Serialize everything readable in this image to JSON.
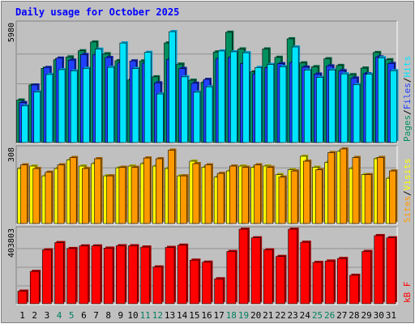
{
  "colors": {
    "background": "#c0c0c0",
    "plot_bg": "#ffffff",
    "border_dark": "#808080",
    "title": "#0000ff",
    "hits_front": "#00e5ff",
    "hits_back": "#0096c8",
    "files_front": "#2040ff",
    "files_back": "#1020a0",
    "pages_front": "#009060",
    "pages_back": "#00603c",
    "visits_front": "#ffff00",
    "visits_back": "#a0a000",
    "sites_front": "#ff9900",
    "sites_back": "#a06000",
    "kbytes_front": "#ff0000",
    "kbytes_back": "#a00000",
    "weekend_label": "#008060",
    "weekday_label": "#000000"
  },
  "chart_data": {
    "type": "bar",
    "title": "Daily usage for October 2025",
    "categories": [
      "1",
      "2",
      "3",
      "4",
      "5",
      "6",
      "7",
      "8",
      "9",
      "10",
      "11",
      "12",
      "13",
      "14",
      "15",
      "16",
      "17",
      "18",
      "19",
      "20",
      "21",
      "22",
      "23",
      "24",
      "25",
      "26",
      "27",
      "28",
      "29",
      "30",
      "31"
    ],
    "weekend_days": [
      "4",
      "5",
      "11",
      "12",
      "18",
      "19",
      "25",
      "26"
    ],
    "panels": [
      {
        "name": "hits-files-pages",
        "max_label": "5980",
        "ylim": [
          0,
          5980
        ],
        "legend": [
          {
            "text": "Pages",
            "color_key": "pages_front"
          },
          {
            "text": "Files",
            "color_key": "files_front"
          },
          {
            "text": "Hits",
            "color_key": "hits_front"
          }
        ],
        "series": [
          {
            "name": "Pages",
            "color_key": "pages",
            "values": [
              2135,
              2890,
              3730,
              4160,
              4300,
              4610,
              5050,
              4460,
              4110,
              3140,
              4100,
              3300,
              5000,
              3940,
              3130,
              3030,
              4550,
              5540,
              4700,
              3550,
              4700,
              4280,
              5210,
              4000,
              3810,
              4210,
              3870,
              3410,
              3740,
              4520,
              4160
            ]
          },
          {
            "name": "Files",
            "color_key": "files",
            "values": [
              2010,
              2890,
              3770,
              4240,
              4140,
              4420,
              4420,
              4270,
              4000,
              4100,
              3990,
              3000,
              4180,
              3720,
              2980,
              3170,
              4210,
              4280,
              3970,
              3460,
              3770,
              3960,
              4020,
              3790,
              3440,
              3850,
              3610,
              3240,
              3460,
              4300,
              3970
            ]
          },
          {
            "name": "Hits",
            "color_key": "hits",
            "values": [
              1840,
              2540,
              3420,
              3660,
              3600,
              3730,
              4690,
              3780,
              5000,
              3720,
              4530,
              2440,
              5570,
              3300,
              2530,
              2800,
              4600,
              4560,
              4510,
              3770,
              3920,
              3810,
              4800,
              3640,
              3270,
              3640,
              3450,
              2910,
              3430,
              4260,
              3610
            ]
          }
        ]
      },
      {
        "name": "visits-sites",
        "max_label": "308",
        "ylim": [
          0,
          308
        ],
        "legend": [
          {
            "text": "Sites",
            "color_key": "sites_front"
          },
          {
            "text": "Visits",
            "color_key": "visits_front"
          }
        ],
        "series": [
          {
            "name": "Visits",
            "color_key": "visits",
            "values": [
              225,
              235,
              195,
              225,
              260,
              235,
              245,
              195,
              228,
              235,
              245,
              235,
              225,
              195,
              255,
              230,
              190,
              215,
              235,
              230,
              235,
              200,
              220,
              275,
              230,
              250,
              295,
              225,
              200,
              265,
              185
            ]
          },
          {
            "name": "Sites",
            "color_key": "sites",
            "values": [
              240,
              225,
              210,
              240,
              270,
              225,
              265,
              195,
              230,
              230,
              268,
              265,
              300,
              195,
              245,
              240,
              205,
              235,
              230,
              240,
              230,
              190,
              215,
              255,
              220,
              290,
              305,
              270,
              200,
              270,
              215
            ]
          }
        ]
      },
      {
        "name": "kbytes",
        "max_label": "403803",
        "ylim": [
          0,
          403803
        ],
        "legend": [
          {
            "text": "kB F",
            "color_key": "kbytes_front"
          }
        ],
        "series": [
          {
            "name": "kB F",
            "color_key": "kbytes",
            "values": [
              68000,
              175000,
              292000,
              331000,
              299000,
              313000,
              313000,
              301000,
              314000,
              314000,
              307000,
              199000,
              305000,
              317000,
              236000,
              225000,
              135000,
              283000,
              403803,
              357000,
              292000,
              256000,
              403803,
              333000,
              224000,
              231000,
              245000,
              154000,
              283000,
              369000,
              357000
            ]
          }
        ]
      }
    ]
  }
}
